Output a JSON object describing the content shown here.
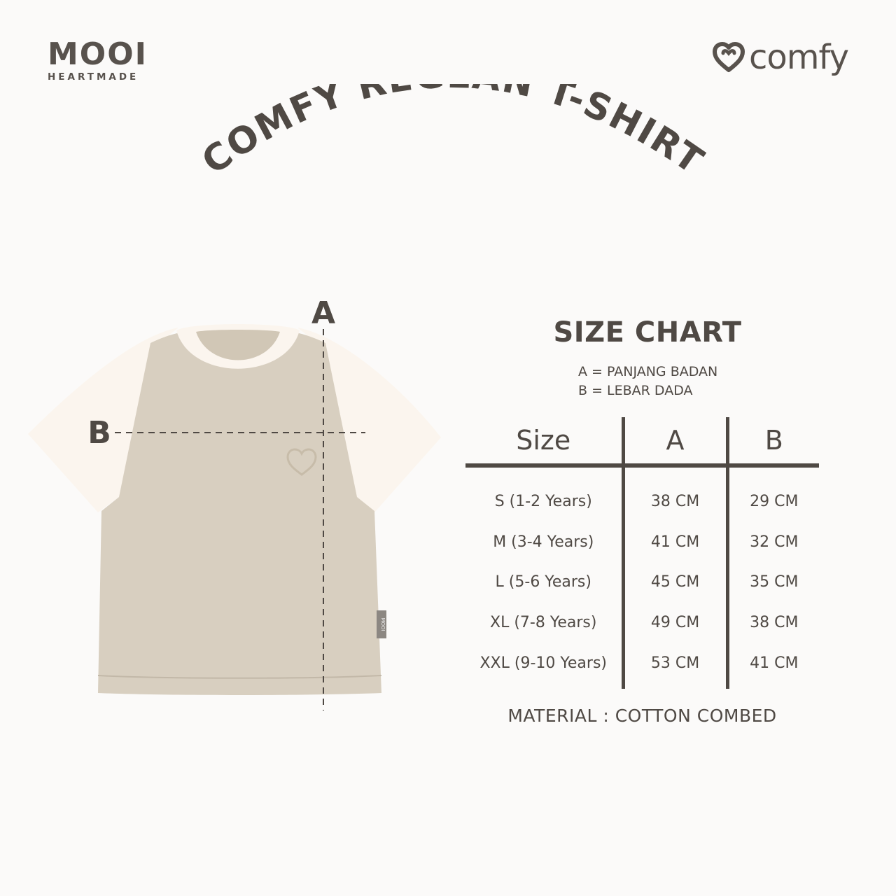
{
  "brand": {
    "mooi": "MOOI",
    "heartmade": "HEARTMADE",
    "comfy": "comfy"
  },
  "title": "COMFY REGLAN T-SHIRT",
  "diagram": {
    "label_a": "A",
    "label_b": "B",
    "tag_text": "MOOI"
  },
  "size_chart": {
    "title": "SIZE CHART",
    "legend": [
      "A = PANJANG BADAN",
      "B = LEBAR DADA"
    ],
    "headers": [
      "Size",
      "A",
      "B"
    ],
    "rows": [
      {
        "size": "S (1-2 Years)",
        "a": "38 CM",
        "b": "29 CM"
      },
      {
        "size": "M (3-4 Years)",
        "a": "41 CM",
        "b": "32 CM"
      },
      {
        "size": "L (5-6 Years)",
        "a": "45 CM",
        "b": "35 CM"
      },
      {
        "size": "XL (7-8 Years)",
        "a": "49 CM",
        "b": "38 CM"
      },
      {
        "size": "XXL (9-10 Years)",
        "a": "53 CM",
        "b": "41 CM"
      }
    ]
  },
  "material": "MATERIAL : COTTON COMBED",
  "colors": {
    "text": "#4f4944",
    "background": "#fbfaf9",
    "shirt_body": "#d8cfc0",
    "shirt_sleeve": "#fbf5ee"
  }
}
